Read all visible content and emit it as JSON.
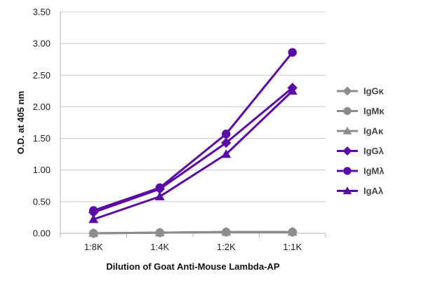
{
  "chart_data": {
    "type": "line",
    "title": "",
    "xlabel": "Dilution of Goat Anti-Mouse Lambda-AP",
    "ylabel": "O.D. at 405 nm",
    "categories": [
      "1:8K",
      "1:4K",
      "1:2K",
      "1:1K"
    ],
    "ylim": [
      0,
      3.5
    ],
    "yticks": [
      "0.00",
      "0.50",
      "1.00",
      "1.50",
      "2.00",
      "2.50",
      "3.00",
      "3.50"
    ],
    "grid": "horizontal",
    "legend_position": "right",
    "series": [
      {
        "name": "IgGκ",
        "marker": "diamond",
        "color": "#8c8c8c",
        "values": [
          0.0,
          0.01,
          0.02,
          0.02
        ]
      },
      {
        "name": "IgMκ",
        "marker": "circle",
        "color": "#8c8c8c",
        "values": [
          0.0,
          0.01,
          0.02,
          0.02
        ]
      },
      {
        "name": "IgAκ",
        "marker": "triangle",
        "color": "#8c8c8c",
        "values": [
          0.0,
          0.01,
          0.02,
          0.02
        ]
      },
      {
        "name": "IgGλ",
        "marker": "diamond",
        "color": "#5a0aa5",
        "values": [
          0.33,
          0.7,
          1.43,
          2.3
        ]
      },
      {
        "name": "IgMλ",
        "marker": "circle",
        "color": "#5a0aa5",
        "values": [
          0.36,
          0.72,
          1.57,
          2.86
        ]
      },
      {
        "name": "IgAλ",
        "marker": "triangle",
        "color": "#5a0aa5",
        "values": [
          0.22,
          0.58,
          1.25,
          2.25
        ]
      }
    ]
  }
}
